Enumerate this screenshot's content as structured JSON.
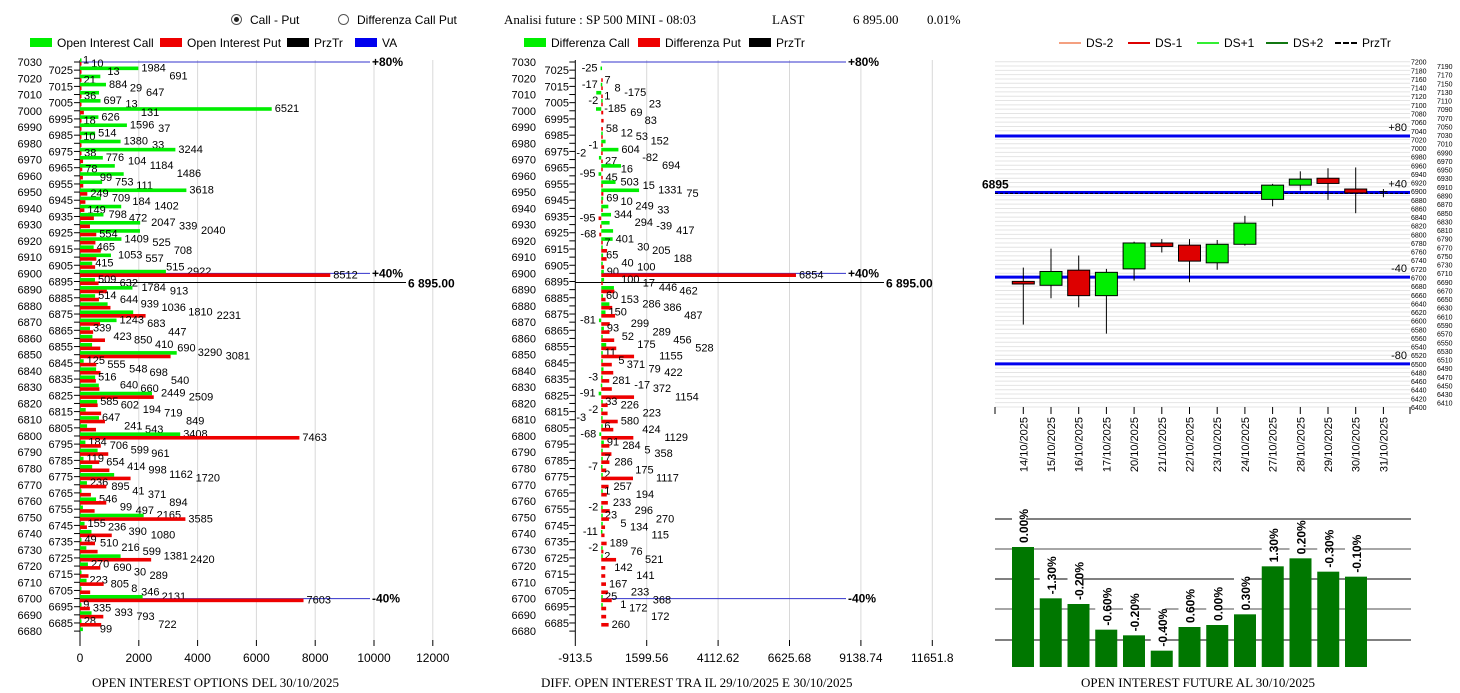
{
  "header": {
    "radio_call_put": "Call - Put",
    "radio_diff": "Differenza Call Put",
    "selected": "Call - Put",
    "analysis_title": "Analisi future : SP 500 MINI - 08:03",
    "last_label": "LAST",
    "last_value": "6 895.00",
    "last_change": "0.01%"
  },
  "colors": {
    "call": "#00ee00",
    "put": "#ee0000",
    "prztr": "#000000",
    "va": "#0000ff",
    "future_bar": "#007700",
    "candle_up": "#00ee00",
    "candle_down": "#dd0000"
  },
  "chart_data": [
    {
      "type": "bar",
      "orientation": "horizontal",
      "title": "OPEN INTEREST OPTIONS DEL 30/10/2025",
      "legend": [
        "Open Interest Call",
        "Open Interest Put",
        "PrzTr",
        "VA"
      ],
      "legend_placement": "top",
      "xlim": [
        0,
        12000
      ],
      "xticks": [
        "0",
        "2000",
        "4000",
        "6000",
        "8000",
        "10000",
        "12000"
      ],
      "grid": true,
      "strikes": [
        7030,
        7025,
        7020,
        7015,
        7010,
        7005,
        7000,
        6995,
        6990,
        6985,
        6980,
        6975,
        6970,
        6965,
        6960,
        6955,
        6950,
        6945,
        6940,
        6935,
        6930,
        6925,
        6920,
        6915,
        6910,
        6905,
        6900,
        6895,
        6890,
        6885,
        6880,
        6875,
        6870,
        6865,
        6860,
        6855,
        6850,
        6845,
        6840,
        6835,
        6830,
        6825,
        6820,
        6815,
        6810,
        6805,
        6800,
        6795,
        6790,
        6785,
        6780,
        6775,
        6770,
        6765,
        6760,
        6755,
        6750,
        6745,
        6740,
        6735,
        6730,
        6725,
        6720,
        6715,
        6710,
        6705,
        6700,
        6695,
        6690,
        6685,
        6680
      ],
      "series": [
        {
          "name": "Open Interest Call",
          "values": [
            1,
            1984,
            691,
            884,
            647,
            697,
            6521,
            626,
            1596,
            514,
            1380,
            3244,
            776,
            1184,
            1486,
            753,
            3618,
            709,
            1402,
            798,
            2047,
            2040,
            1409,
            465,
            1053,
            415,
            2922,
            509,
            1784,
            514,
            939,
            1810,
            1243,
            339,
            423,
            410,
            3290,
            125,
            548,
            516,
            640,
            2449,
            585,
            194,
            647,
            241,
            3408,
            184,
            599,
            119,
            414,
            1162,
            236,
            41,
            546,
            99,
            2165,
            155,
            390,
            49,
            216,
            1381,
            270,
            30,
            223,
            8,
            2131,
            9,
            393,
            28,
            99
          ]
        },
        {
          "name": "Open Interest Put",
          "values": [
            10,
            13,
            21,
            29,
            36,
            13,
            131,
            18,
            37,
            10,
            33,
            38,
            104,
            78,
            99,
            111,
            249,
            184,
            149,
            472,
            339,
            554,
            525,
            708,
            557,
            515,
            8512,
            632,
            913,
            644,
            1036,
            2231,
            683,
            447,
            850,
            690,
            3081,
            555,
            698,
            540,
            660,
            2509,
            602,
            719,
            849,
            543,
            7463,
            706,
            961,
            654,
            998,
            1720,
            895,
            371,
            894,
            497,
            3585,
            236,
            1080,
            510,
            599,
            2420,
            690,
            289,
            805,
            346,
            7603,
            335,
            793,
            722,
            0
          ]
        }
      ],
      "prztr": {
        "value": 6895,
        "label": "6 895.00"
      },
      "va_levels": [
        {
          "strike": 7030,
          "label": "+80%"
        },
        {
          "strike": 6900,
          "label": "+40%"
        },
        {
          "strike": 6700,
          "label": "-40%"
        }
      ]
    },
    {
      "type": "bar",
      "orientation": "horizontal",
      "title": "DIFF. OPEN INTEREST TRA IL 29/10/2025 E 30/10/2025",
      "legend": [
        "Differenza Call",
        "Differenza Put",
        "PrzTr"
      ],
      "legend_placement": "top",
      "xlim": [
        -913.5,
        11651.8
      ],
      "xticks": [
        "-913.5",
        "1599.56",
        "4112.62",
        "6625.68",
        "9138.74",
        "11651.8"
      ],
      "grid": true,
      "series": [
        {
          "name": "Differenza Call",
          "values": [
            0,
            -25,
            0,
            -17,
            -175,
            -2,
            -185,
            0,
            0,
            12,
            152,
            604,
            -82,
            694,
            -95,
            503,
            1331,
            69,
            249,
            344,
            294,
            417,
            401,
            30,
            65,
            40,
            90,
            100,
            446,
            60,
            286,
            150,
            -81,
            93,
            52,
            175,
            11,
            5,
            79,
            -3,
            -17,
            -91,
            33,
            -2,
            -3,
            6,
            -68,
            91,
            5,
            7,
            -7,
            2,
            0,
            1,
            0,
            -2,
            23,
            5,
            -11,
            0,
            -2,
            2,
            0,
            0,
            0,
            0,
            25,
            1,
            0,
            0,
            0
          ]
        },
        {
          "name": "Differenza Put",
          "values": [
            0,
            0,
            7,
            8,
            1,
            23,
            69,
            83,
            58,
            53,
            -1,
            -2,
            27,
            16,
            45,
            15,
            75,
            10,
            33,
            -95,
            -39,
            -68,
            7,
            205,
            188,
            100,
            6854,
            17,
            462,
            153,
            386,
            487,
            299,
            289,
            456,
            528,
            1155,
            371,
            422,
            281,
            372,
            1154,
            226,
            223,
            580,
            424,
            1129,
            284,
            358,
            286,
            175,
            1117,
            257,
            194,
            233,
            296,
            270,
            134,
            115,
            189,
            76,
            521,
            142,
            141,
            167,
            233,
            368,
            172,
            172,
            260,
            0
          ]
        }
      ],
      "prztr": {
        "value": 6895,
        "label": "6 895.00"
      },
      "va_levels": [
        {
          "strike": 7030,
          "label": "+80%"
        },
        {
          "strike": 6900,
          "label": "+40%"
        },
        {
          "strike": 6700,
          "label": "-40%"
        }
      ]
    },
    {
      "type": "candlestick",
      "legend": [
        "DS-2",
        "DS-1",
        "DS+1",
        "DS+2",
        "PrzTr"
      ],
      "legend_colors": [
        "#f4a080",
        "#dd0000",
        "#33ee33",
        "#117711",
        "#000000"
      ],
      "legend_placement": "top",
      "ylim": [
        6400,
        7200
      ],
      "yticks_step": 20,
      "dates": [
        "14/10/2025",
        "15/10/2025",
        "16/10/2025",
        "17/10/2025",
        "20/10/2025",
        "21/10/2025",
        "22/10/2025",
        "23/10/2025",
        "24/10/2025",
        "27/10/2025",
        "28/10/2025",
        "29/10/2025",
        "30/10/2025",
        "31/10/2025"
      ],
      "open": [
        6691,
        6682,
        6717,
        6658,
        6720,
        6780,
        6775,
        6734,
        6777,
        6881,
        6914,
        6930,
        6905,
        6899
      ],
      "close": [
        6685,
        6714,
        6658,
        6712,
        6780,
        6772,
        6738,
        6777,
        6826,
        6914,
        6928,
        6918,
        6896,
        6899
      ],
      "high": [
        6723,
        6767,
        6751,
        6720,
        6783,
        6789,
        6789,
        6787,
        6843,
        6917,
        6946,
        6953,
        6955,
        6905
      ],
      "low": [
        6591,
        6652,
        6631,
        6570,
        6693,
        6758,
        6689,
        6718,
        6774,
        6865,
        6902,
        6880,
        6849,
        6886
      ],
      "levels": [
        {
          "value": 7028,
          "label": "+80"
        },
        {
          "value": 6897,
          "label": "+40"
        },
        {
          "value": 6701,
          "label": "-40"
        },
        {
          "value": 6500,
          "label": "-80"
        }
      ],
      "prztr": {
        "value": 6895,
        "label": "6895"
      }
    },
    {
      "type": "bar",
      "title": "OPEN INTEREST FUTURE AL 30/10/2025",
      "values_relative": [
        360,
        206,
        189,
        112,
        95,
        49,
        120,
        126,
        158,
        302,
        326,
        286,
        271
      ],
      "data_labels": [
        "0.00%",
        "-1.30%",
        "-0.20%",
        "-0.60%",
        "-0.20%",
        "-0.40%",
        "0.60%",
        "0.00%",
        "0.30%",
        "1.30%",
        "0.20%",
        "-0.30%",
        "-0.10%"
      ],
      "grid": true
    }
  ]
}
